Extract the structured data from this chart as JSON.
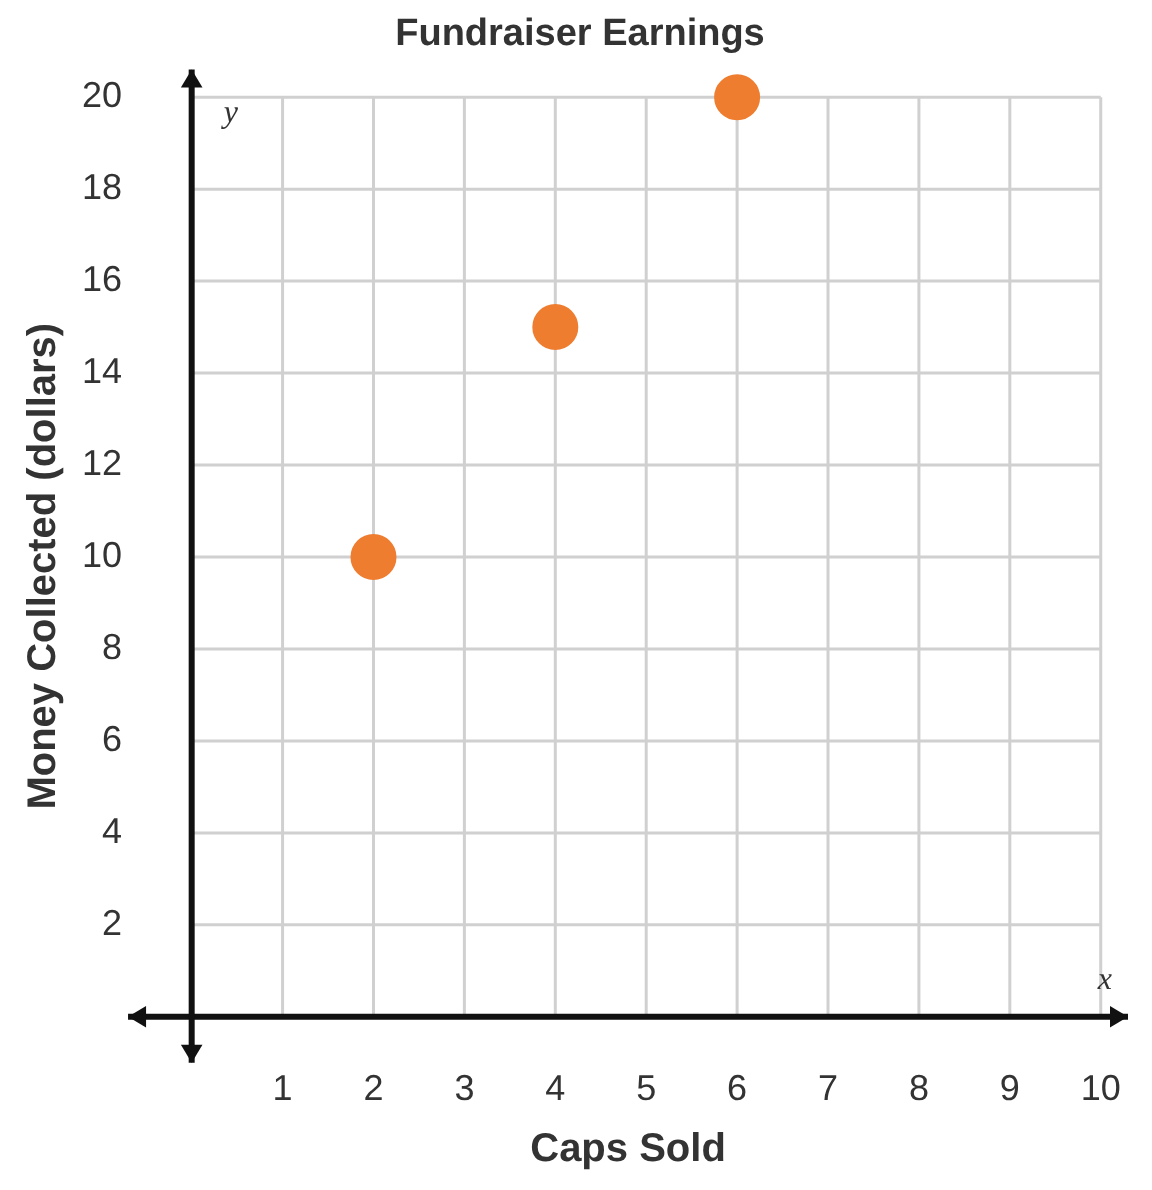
{
  "chart_data": {
    "type": "scatter",
    "title": "Fundraiser Earnings",
    "xlabel": "Caps Sold",
    "ylabel": "Money Collected (dollars)",
    "x": [
      2,
      4,
      6
    ],
    "values": [
      10,
      15,
      20
    ],
    "color": "#ef7d30",
    "marker": "circle",
    "xlim": [
      -0.7,
      10.3
    ],
    "ylim": [
      -1,
      20.6
    ],
    "xticks": [
      1,
      2,
      3,
      4,
      5,
      6,
      7,
      8,
      9,
      10
    ],
    "yticks": [
      2,
      4,
      6,
      8,
      10,
      12,
      14,
      16,
      18,
      20
    ],
    "grid": true,
    "legend": false,
    "annotations": [
      "x",
      "y"
    ]
  }
}
